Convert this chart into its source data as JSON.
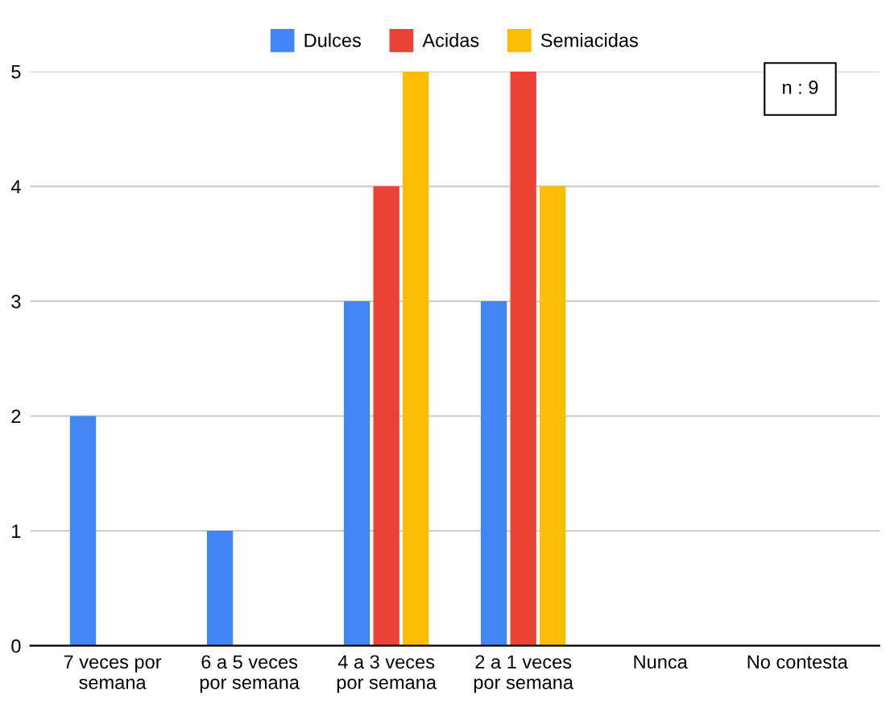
{
  "chart_data": {
    "type": "bar",
    "categories": [
      "7 veces por\nsemana",
      "6 a 5 veces\npor semana",
      "4 a 3 veces\npor semana",
      "2 a 1 veces\npor semana",
      "Nunca",
      "No contesta"
    ],
    "series": [
      {
        "name": "Dulces",
        "color": "#4285f4",
        "values": [
          2,
          1,
          3,
          3,
          0,
          0
        ]
      },
      {
        "name": "Acidas",
        "color": "#ea4335",
        "values": [
          0,
          0,
          4,
          5,
          0,
          0
        ]
      },
      {
        "name": "Semiacidas",
        "color": "#fbbc04",
        "values": [
          0,
          0,
          5,
          4,
          0,
          0
        ]
      }
    ],
    "ylim": [
      0,
      5
    ],
    "yticks": [
      0,
      1,
      2,
      3,
      4,
      5
    ],
    "grid": "y",
    "legend": "top",
    "annotations": [
      "n : 9"
    ]
  }
}
